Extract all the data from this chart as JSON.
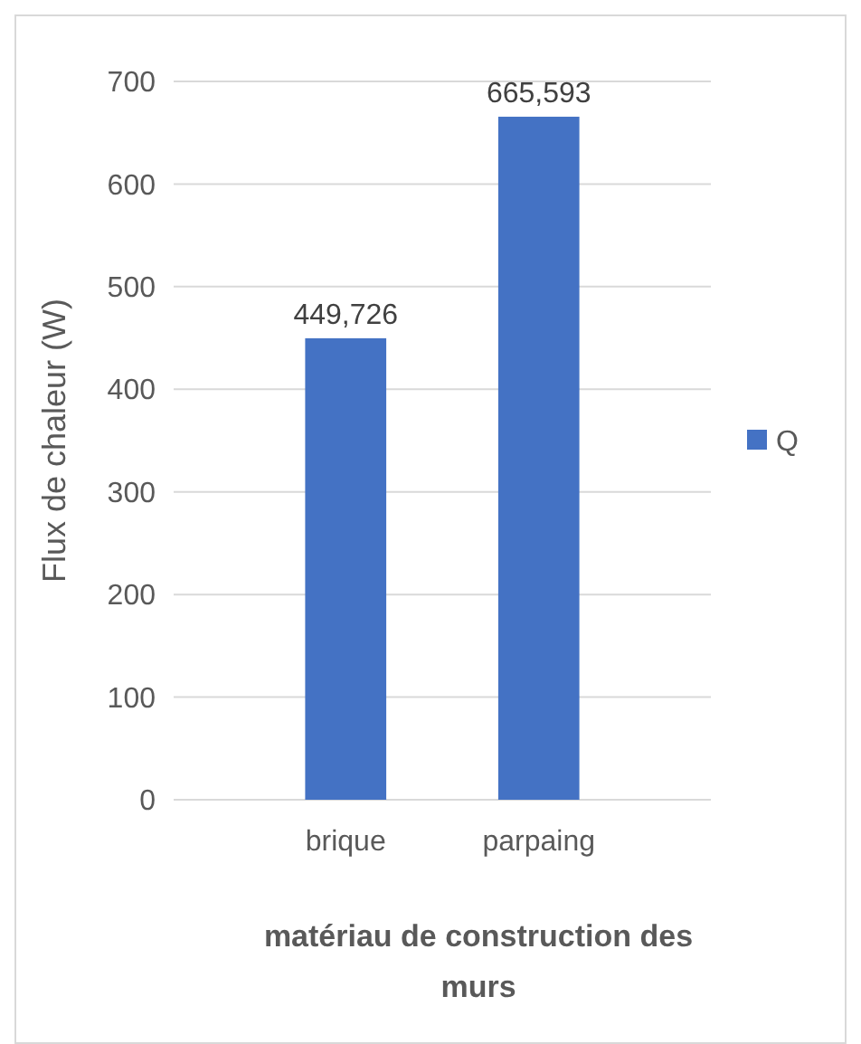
{
  "chart_data": {
    "type": "bar",
    "xlabel": "matériau de construction des murs",
    "ylabel": "Flux de chaleur (W)",
    "categories": [
      "brique",
      "parpaing"
    ],
    "series": [
      {
        "name": "Q",
        "color": "#4472c4",
        "values": [
          449.726,
          665.593
        ]
      }
    ],
    "value_labels": [
      "449,726",
      "665,593"
    ],
    "ylim": [
      0,
      700
    ],
    "yticks": [
      0,
      100,
      200,
      300,
      400,
      500,
      600,
      700
    ],
    "grid": "y",
    "legend": "right"
  }
}
